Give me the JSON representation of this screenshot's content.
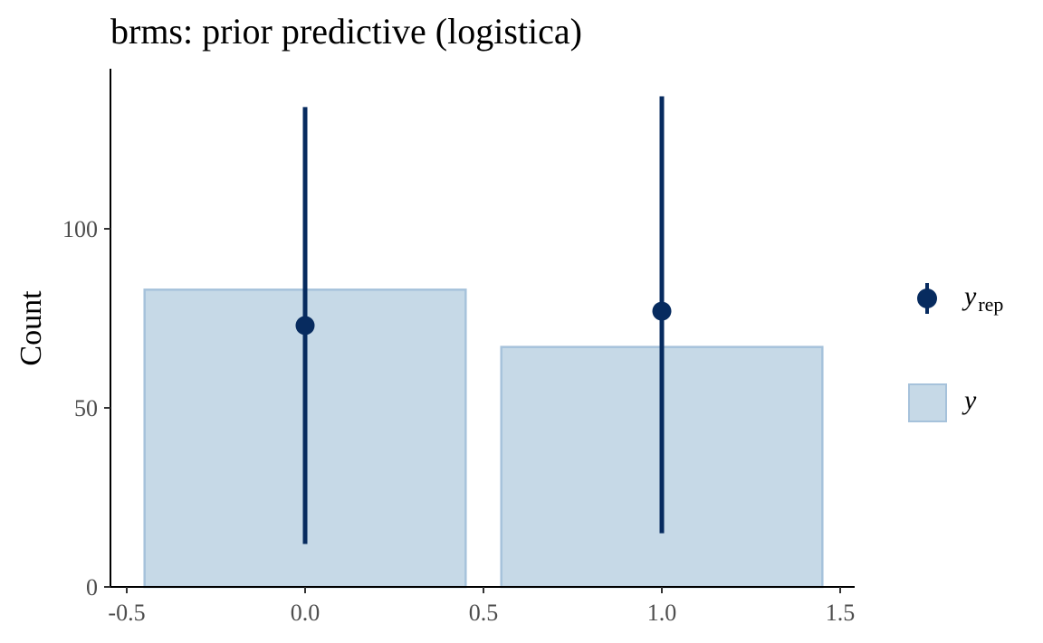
{
  "chart_data": {
    "type": "bar",
    "title": "brms: prior predictive (logistica)",
    "xlabel": "",
    "ylabel": "Count",
    "xlim": [
      -0.55,
      1.55
    ],
    "ylim": [
      0,
      140
    ],
    "x_ticks": [
      "-0.5",
      "0.0",
      "0.5",
      "1.0",
      "1.5"
    ],
    "y_ticks": [
      "0",
      "50",
      "100"
    ],
    "grid": false,
    "legend_position": "right",
    "bars": [
      {
        "x": 0,
        "value": 83
      },
      {
        "x": 1,
        "value": 67
      }
    ],
    "bar_width": 0.9,
    "yrep": [
      {
        "x": 0,
        "median": 73,
        "low": 12,
        "high": 134
      },
      {
        "x": 1,
        "median": 77,
        "low": 15,
        "high": 137
      }
    ],
    "legend": [
      {
        "key": "yrep",
        "label": "y",
        "subscript": "rep"
      },
      {
        "key": "y",
        "label": "y"
      }
    ],
    "colors": {
      "bar_fill": "#c6d9e7",
      "bar_stroke": "#a6c2db",
      "yrep": "#072b5f",
      "axis": "#000000",
      "tick_text": "#4d4d4d"
    }
  }
}
